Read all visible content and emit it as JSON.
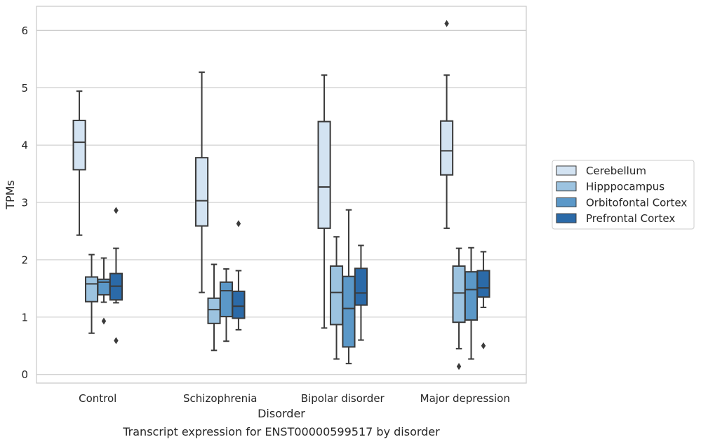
{
  "chart_data": {
    "type": "box",
    "caption": "Transcript expression for ENST00000599517 by disorder",
    "xlabel": "Disorder",
    "ylabel": "TPMs",
    "ylim": [
      -0.15,
      6.42
    ],
    "yticks": [
      0,
      1,
      2,
      3,
      4,
      5,
      6
    ],
    "grid": true,
    "legend_position": "right",
    "categories": [
      "Control",
      "Schizophrenia",
      "Bipolar disorder",
      "Major depression"
    ],
    "series": [
      {
        "name": "Cerebellum",
        "color": "#d3e3f2",
        "boxes": [
          {
            "whisker_low": 2.43,
            "q1": 3.57,
            "median": 4.05,
            "q3": 4.43,
            "whisker_high": 4.94,
            "outliers": []
          },
          {
            "whisker_low": 1.43,
            "q1": 2.59,
            "median": 3.03,
            "q3": 3.78,
            "whisker_high": 5.27,
            "outliers": []
          },
          {
            "whisker_low": 0.81,
            "q1": 2.55,
            "median": 3.27,
            "q3": 4.41,
            "whisker_high": 5.22,
            "outliers": []
          },
          {
            "whisker_low": 2.55,
            "q1": 3.48,
            "median": 3.9,
            "q3": 4.42,
            "whisker_high": 5.22,
            "outliers": [
              6.12
            ]
          }
        ]
      },
      {
        "name": "Hipppocampus",
        "color": "#9cc3e0",
        "boxes": [
          {
            "whisker_low": 0.72,
            "q1": 1.27,
            "median": 1.58,
            "q3": 1.7,
            "whisker_high": 2.09,
            "outliers": []
          },
          {
            "whisker_low": 0.42,
            "q1": 0.89,
            "median": 1.13,
            "q3": 1.33,
            "whisker_high": 1.92,
            "outliers": []
          },
          {
            "whisker_low": 0.27,
            "q1": 0.87,
            "median": 1.43,
            "q3": 1.89,
            "whisker_high": 2.4,
            "outliers": []
          },
          {
            "whisker_low": 0.45,
            "q1": 0.91,
            "median": 1.42,
            "q3": 1.89,
            "whisker_high": 2.2,
            "outliers": [
              0.14
            ]
          }
        ]
      },
      {
        "name": "Orbitofontal Cortex",
        "color": "#5b98c8",
        "boxes": [
          {
            "whisker_low": 1.26,
            "q1": 1.39,
            "median": 1.61,
            "q3": 1.66,
            "whisker_high": 2.03,
            "outliers": [
              0.93
            ]
          },
          {
            "whisker_low": 0.58,
            "q1": 1.01,
            "median": 1.46,
            "q3": 1.61,
            "whisker_high": 1.84,
            "outliers": []
          },
          {
            "whisker_low": 0.19,
            "q1": 0.48,
            "median": 1.15,
            "q3": 1.71,
            "whisker_high": 2.87,
            "outliers": []
          },
          {
            "whisker_low": 0.27,
            "q1": 0.95,
            "median": 1.48,
            "q3": 1.79,
            "whisker_high": 2.21,
            "outliers": []
          }
        ]
      },
      {
        "name": "Prefrontal Cortex",
        "color": "#2b6aa8",
        "boxes": [
          {
            "whisker_low": 1.25,
            "q1": 1.3,
            "median": 1.54,
            "q3": 1.76,
            "whisker_high": 2.2,
            "outliers": [
              2.86,
              0.59
            ]
          },
          {
            "whisker_low": 0.78,
            "q1": 0.98,
            "median": 1.19,
            "q3": 1.45,
            "whisker_high": 1.81,
            "outliers": [
              2.63
            ]
          },
          {
            "whisker_low": 0.6,
            "q1": 1.21,
            "median": 1.42,
            "q3": 1.85,
            "whisker_high": 2.25,
            "outliers": []
          },
          {
            "whisker_low": 1.17,
            "q1": 1.35,
            "median": 1.51,
            "q3": 1.81,
            "whisker_high": 2.14,
            "outliers": [
              0.5
            ]
          }
        ]
      }
    ]
  }
}
